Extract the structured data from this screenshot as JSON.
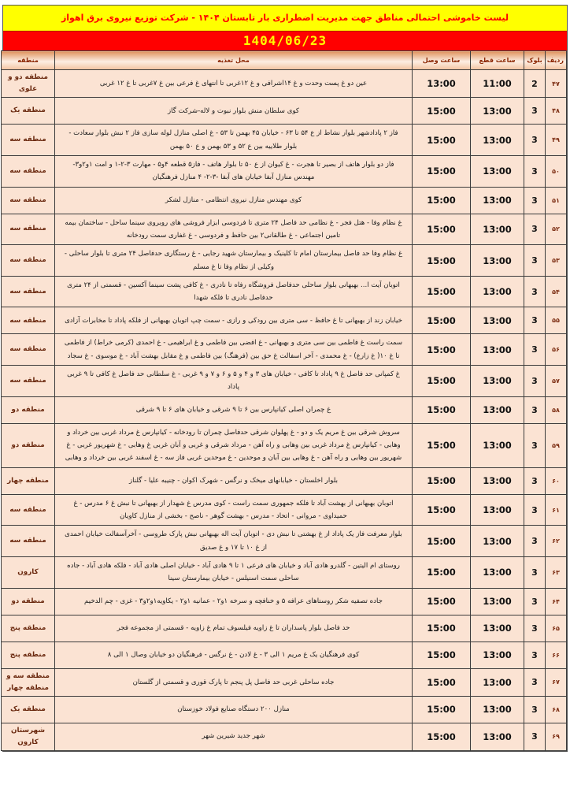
{
  "title": "لیست خاموشی احتمالی مناطق جهت مدیریت اضطراری بار تابستان ۱۴۰۴ - شرکت توزیع نیروی برق اهواز",
  "date": "1404/06/23",
  "columns": {
    "radif": "ردیف",
    "block": "بلوک",
    "cut": "ساعت قطع",
    "connect": "ساعت وصل",
    "location": "محل تغذیه",
    "region": "منطقه"
  },
  "colors": {
    "title_bg": "#ffff00",
    "title_text": "#ff0000",
    "date_bg": "#ff0000",
    "date_text": "#ffff00",
    "header_gradient_top": "#e0945f",
    "header_text": "#8b2500",
    "cell_bg": "#fbe3d3",
    "border": "#3c3c3c"
  },
  "rows": [
    {
      "radif": "۴۷",
      "block": "2",
      "cut": "11:00",
      "connect": "13:00",
      "region": "منطقه دو و علوی",
      "location": "عین دو غ پست وحدت و غ ۱۴اشرافی و غ ۱۲غربی تا انتهای غ فرعی بین غ ۷غربی تا غ ۱۲ غربی"
    },
    {
      "radif": "۴۸",
      "block": "3",
      "cut": "13:00",
      "connect": "15:00",
      "region": "منطقه یک",
      "location": "کوی سلطان منش بلوار نبوت و لاله-شرکت گاز"
    },
    {
      "radif": "۴۹",
      "block": "3",
      "cut": "13:00",
      "connect": "15:00",
      "region": "منطقه سه",
      "location": "فاز ۲ پادادشهر بلوار نشاط از ع ۵۴ تا ۶۳ - خیابان ۴۵ بهمن تا ۵۳ - غ اصلی منازل لوله سازی فاز ۲ نبش بلوار سعادت - بلوار طلاییه بین ع ۵۲ و ۵۳ بهمن و ع ۵۰ بهمن"
    },
    {
      "radif": "۵۰",
      "block": "3",
      "cut": "13:00",
      "connect": "15:00",
      "region": "منطقه سه",
      "location": "فاز دو بلوار هاتف از بصیر تا هجرت - غ کیوان از ع ۵۰ تا بلوار هاتف - فاز۵ قطعه ۴و۵ - مهارت ۳-۲-۱ و امت ۱و۲و۳- مهندس منازل آبفا خیابان های آبفا -۳-۲- ۴ منازل فرهنگیان"
    },
    {
      "radif": "۵۱",
      "block": "3",
      "cut": "13:00",
      "connect": "15:00",
      "region": "منطقه سه",
      "location": "کوی مهندس منازل نیروی انتظامی - منازل لشکر"
    },
    {
      "radif": "۵۲",
      "block": "3",
      "cut": "13:00",
      "connect": "15:00",
      "region": "منطقه سه",
      "location": "غ نظام وفا - هتل فجر - غ نظامی حد فاصل ۲۴ متری تا فردوسی ابزار فروشی های روبروی سینما ساحل - ساختمان بیمه تامین اجتماعی - غ طالقانی۲ بین حافظ و فردوسی - غ غفاری سمت رودخانه"
    },
    {
      "radif": "۵۳",
      "block": "3",
      "cut": "13:00",
      "connect": "15:00",
      "region": "منطقه سه",
      "location": "غ نظام وفا حد فاصل بیمارستان امام تا کلینیک و بیمارستان شهید رجایی - غ رستگاری حدفاصل ۲۴ متری تا بلوار ساحلی - وکیلی از نظام وفا تا غ مسلم"
    },
    {
      "radif": "۵۴",
      "block": "3",
      "cut": "13:00",
      "connect": "15:00",
      "region": "منطقه سه",
      "location": "اتوبان آیت ا... بهبهانی بلوار ساحلی حدفاصل فروشگاه رفاه تا نادری - غ کافی پشت سینما آکسین - قسمتی از ۲۴ متری حدفاصل نادری تا فلکه شهدا"
    },
    {
      "radif": "۵۵",
      "block": "3",
      "cut": "13:00",
      "connect": "15:00",
      "region": "منطقه سه",
      "location": "خیابان زند از بهبهانی تا غ حافظ - سی متری بین رودکی و رازی - سمت چپ اتوبان بهبهانی از فلکه پاداد تا مخابرات آزادی"
    },
    {
      "radif": "۵۶",
      "block": "3",
      "cut": "13:00",
      "connect": "15:00",
      "region": "منطقه سه",
      "location": "سمت راست غ فاطمی بین سی متری و بهبهانی - غ افضی بین فاطمی و غ ابراهیمی - غ احمدی (کرمی خراط) از فاطمی تا غ ۱۰( غ زارع) - غ محمدی - آخر اسفالت غ حق بین (فرهنگ) بین فاطمی و غ مقابل بهشت آباد - غ موسوی - غ سجاد"
    },
    {
      "radif": "۵۷",
      "block": "3",
      "cut": "13:00",
      "connect": "15:00",
      "region": "منطقه سه",
      "location": "غ کمپانی حد فاصل غ ۹ پاداد تا کافی - خیابان های ۳ و ۴ و ۵ و ۶ و ۷ و ۹ غربی - غ سلطانی حد فاصل غ کافی تا ۹ غربی پاداد"
    },
    {
      "radif": "۵۸",
      "block": "3",
      "cut": "13:00",
      "connect": "15:00",
      "region": "منطقه دو",
      "location": "غ چمران اصلی کیانپارس بین ۶ تا ۹ شرقی و خیابان های ۶ تا ۹ شرقی"
    },
    {
      "radif": "۵۹",
      "block": "3",
      "cut": "13:00",
      "connect": "15:00",
      "region": "منطقه دو",
      "location": "سروش شرقی بین غ مریم یک و دو - غ پهلوان شرقی حدفاصل چمران تا رودخانه - کیانپارس غ مرداد غربی بین خرداد و وهابی - کیانپارس غ مرداد غربی بین وهابی و راه آهن - مرداد شرقی و غربی و آبان غربی غ وهابی - غ شهریور غربی - غ شهریور بین وهابی و راه آهن - غ وهابی بین آبان و موحدین - غ موحدین غربی فاز سه - غ اسفند غربی بین خرداد و وهابی"
    },
    {
      "radif": "۶۰",
      "block": "3",
      "cut": "13:00",
      "connect": "15:00",
      "region": "منطقه چهار",
      "location": "بلوار اخلستان - خیابانهای میخک و نرگس - شهرک اکوان - چنیبه علیا - گلناز"
    },
    {
      "radif": "۶۱",
      "block": "3",
      "cut": "13:00",
      "connect": "15:00",
      "region": "منطقه سه",
      "location": "اتوبان بهبهانی از بهشت آباد تا فلکه جمهوری سمت راست - کوی مدرس غ شهدار از بهبهانی تا نبش غ ۶ مدرس - غ حمیداوی - مروانی - اتحاد - مدرس - بهشت گوهر - ناصح - بخشی از منازل کاویان"
    },
    {
      "radif": "۶۲",
      "block": "3",
      "cut": "13:00",
      "connect": "15:00",
      "region": "منطقه سه",
      "location": "بلوار معرفت فاز یک پاداد از غ بهشتی تا نبش دی - اتوبان آیت اله بهبهانی نبش پارک طروسی - آخرآسفالت خیابان احمدی از غ ۱۰ تا ۱۷ و غ صدیق"
    },
    {
      "radif": "۶۳",
      "block": "3",
      "cut": "13:00",
      "connect": "15:00",
      "region": "کارون",
      "location": "روستای ام الیتین - گلدرو هادی آباد و خیابان های فرعی ۱ تا ۹ هادی آباد - خیابان اصلی هادی آباد - فلکه هادی آباد - جاده ساحلی سمت اسنیلس - خیابان بیمارستان سینا"
    },
    {
      "radif": "۶۴",
      "block": "3",
      "cut": "13:00",
      "connect": "15:00",
      "region": "منطقه دو",
      "location": "جاده تصفیه شکر روستاهای عرافه ۵ و خنافچه و سرخه ۱و۲ - عمانیه ۱و۲ - یکاویه۱و۲و۳ - غزی - چم الدخیم"
    },
    {
      "radif": "۶۵",
      "block": "3",
      "cut": "13:00",
      "connect": "15:00",
      "region": "منطقه پنج",
      "location": "حد فاصل بلوار پاسداران تا غ زاویه فیلسوف تمام غ زاویه - قسمتی از مجموعه فجر"
    },
    {
      "radif": "۶۶",
      "block": "3",
      "cut": "13:00",
      "connect": "15:00",
      "region": "منطقه پنج",
      "location": "کوی فرهنگیان یک غ مریم ۱ الی ۳ - غ لادن - غ نرگس - فرهنگیان دو خیابان وصال ۱ الی ۸"
    },
    {
      "radif": "۶۷",
      "block": "3",
      "cut": "13:00",
      "connect": "15:00",
      "region": "منطقه سه و منطقه چهار",
      "location": "جاده ساحلی غربی حد فاصل پل پنجم تا پارک قوری و قسمتی از گلستان"
    },
    {
      "radif": "۶۸",
      "block": "3",
      "cut": "13:00",
      "connect": "15:00",
      "region": "منطقه یک",
      "location": "منازل ۲۰۰ دستگاه صنایع فولاد خوزستان"
    },
    {
      "radif": "۶۹",
      "block": "3",
      "cut": "13:00",
      "connect": "15:00",
      "region": "شهرستان کارون",
      "location": "شهر جدید شیرین شهر"
    }
  ]
}
